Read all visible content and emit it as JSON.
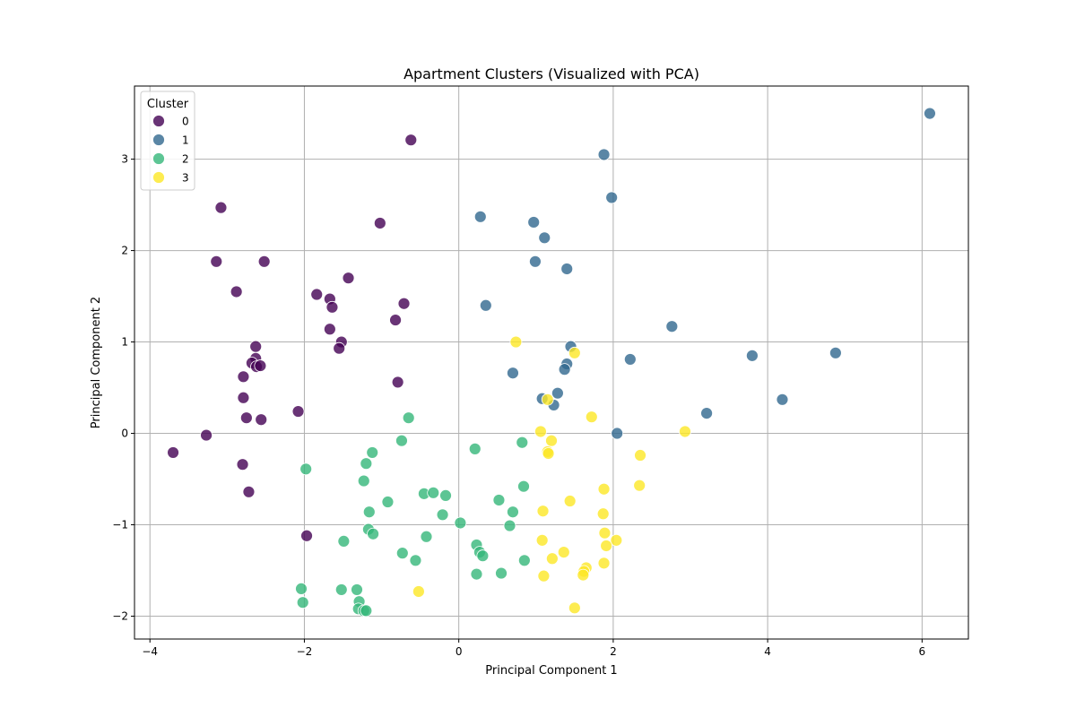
{
  "chart_data": {
    "type": "scatter",
    "title": "Apartment Clusters (Visualized with PCA)",
    "xlabel": "Principal Component 1",
    "ylabel": "Principal Component 2",
    "xlim": [
      -4.2,
      6.6
    ],
    "ylim": [
      -2.25,
      3.8
    ],
    "xticks": [
      -4,
      -2,
      0,
      2,
      4,
      6
    ],
    "yticks": [
      -2,
      -1,
      0,
      1,
      2,
      3
    ],
    "xtick_labels": [
      "−4",
      "−2",
      "0",
      "2",
      "4",
      "6"
    ],
    "ytick_labels": [
      "−2",
      "−1",
      "0",
      "1",
      "2",
      "3"
    ],
    "grid": true,
    "legend": {
      "title": "Cluster",
      "placement": "top-left"
    },
    "series": [
      {
        "name": "0",
        "color": "#440154",
        "points": [
          [
            -0.62,
            3.21
          ],
          [
            -3.08,
            2.47
          ],
          [
            -1.02,
            2.3
          ],
          [
            -3.14,
            1.88
          ],
          [
            -2.52,
            1.88
          ],
          [
            -1.43,
            1.7
          ],
          [
            -2.88,
            1.55
          ],
          [
            -1.84,
            1.52
          ],
          [
            -1.67,
            1.47
          ],
          [
            -1.64,
            1.38
          ],
          [
            -0.71,
            1.42
          ],
          [
            -0.82,
            1.24
          ],
          [
            -1.67,
            1.14
          ],
          [
            -1.52,
            1.0
          ],
          [
            -1.55,
            0.93
          ],
          [
            -2.63,
            0.95
          ],
          [
            -2.63,
            0.82
          ],
          [
            -2.68,
            0.77
          ],
          [
            -2.62,
            0.73
          ],
          [
            -2.57,
            0.74
          ],
          [
            -2.79,
            0.62
          ],
          [
            -0.79,
            0.56
          ],
          [
            -2.79,
            0.39
          ],
          [
            -2.08,
            0.24
          ],
          [
            -2.75,
            0.17
          ],
          [
            -2.56,
            0.15
          ],
          [
            -3.27,
            -0.02
          ],
          [
            -3.7,
            -0.21
          ],
          [
            -2.8,
            -0.34
          ],
          [
            -2.72,
            -0.64
          ],
          [
            -1.97,
            -1.12
          ]
        ]
      },
      {
        "name": "1",
        "color": "#31688e",
        "points": [
          [
            6.1,
            3.5
          ],
          [
            1.88,
            3.05
          ],
          [
            1.98,
            2.58
          ],
          [
            0.28,
            2.37
          ],
          [
            0.97,
            2.31
          ],
          [
            1.11,
            2.14
          ],
          [
            0.99,
            1.88
          ],
          [
            1.4,
            1.8
          ],
          [
            0.35,
            1.4
          ],
          [
            2.76,
            1.17
          ],
          [
            1.45,
            0.95
          ],
          [
            3.8,
            0.85
          ],
          [
            4.88,
            0.88
          ],
          [
            2.22,
            0.81
          ],
          [
            1.4,
            0.76
          ],
          [
            1.37,
            0.7
          ],
          [
            0.7,
            0.66
          ],
          [
            1.28,
            0.44
          ],
          [
            1.08,
            0.38
          ],
          [
            1.23,
            0.31
          ],
          [
            4.19,
            0.37
          ],
          [
            3.21,
            0.22
          ],
          [
            2.05,
            0.0
          ]
        ]
      },
      {
        "name": "2",
        "color": "#35b779",
        "points": [
          [
            -0.65,
            0.17
          ],
          [
            -0.74,
            -0.08
          ],
          [
            0.21,
            -0.17
          ],
          [
            0.82,
            -0.1
          ],
          [
            -1.12,
            -0.21
          ],
          [
            -1.2,
            -0.33
          ],
          [
            -1.98,
            -0.39
          ],
          [
            -1.23,
            -0.52
          ],
          [
            0.84,
            -0.58
          ],
          [
            -0.45,
            -0.66
          ],
          [
            -0.33,
            -0.65
          ],
          [
            -0.17,
            -0.68
          ],
          [
            0.52,
            -0.73
          ],
          [
            -0.92,
            -0.75
          ],
          [
            0.7,
            -0.86
          ],
          [
            -1.16,
            -0.86
          ],
          [
            -0.21,
            -0.89
          ],
          [
            0.02,
            -0.98
          ],
          [
            0.66,
            -1.01
          ],
          [
            -1.17,
            -1.05
          ],
          [
            -1.11,
            -1.1
          ],
          [
            -0.42,
            -1.13
          ],
          [
            -1.49,
            -1.18
          ],
          [
            0.23,
            -1.22
          ],
          [
            0.27,
            -1.3
          ],
          [
            -0.73,
            -1.31
          ],
          [
            0.31,
            -1.34
          ],
          [
            -0.56,
            -1.39
          ],
          [
            0.85,
            -1.39
          ],
          [
            0.23,
            -1.54
          ],
          [
            0.55,
            -1.53
          ],
          [
            -2.04,
            -1.7
          ],
          [
            -1.52,
            -1.71
          ],
          [
            -1.32,
            -1.71
          ],
          [
            -2.02,
            -1.85
          ],
          [
            -1.29,
            -1.84
          ],
          [
            -1.3,
            -1.92
          ],
          [
            -1.23,
            -1.94
          ],
          [
            -1.2,
            -1.94
          ]
        ]
      },
      {
        "name": "3",
        "color": "#fde725",
        "points": [
          [
            0.74,
            1.0
          ],
          [
            1.5,
            0.88
          ],
          [
            1.15,
            0.37
          ],
          [
            1.72,
            0.18
          ],
          [
            1.06,
            0.02
          ],
          [
            2.93,
            0.02
          ],
          [
            1.2,
            -0.08
          ],
          [
            1.15,
            -0.2
          ],
          [
            1.16,
            -0.22
          ],
          [
            2.35,
            -0.24
          ],
          [
            1.88,
            -0.61
          ],
          [
            2.34,
            -0.57
          ],
          [
            1.44,
            -0.74
          ],
          [
            1.09,
            -0.85
          ],
          [
            1.87,
            -0.88
          ],
          [
            1.89,
            -1.09
          ],
          [
            1.08,
            -1.17
          ],
          [
            2.04,
            -1.17
          ],
          [
            1.91,
            -1.23
          ],
          [
            1.36,
            -1.3
          ],
          [
            1.21,
            -1.37
          ],
          [
            1.88,
            -1.42
          ],
          [
            1.65,
            -1.47
          ],
          [
            1.62,
            -1.51
          ],
          [
            1.61,
            -1.55
          ],
          [
            1.1,
            -1.56
          ],
          [
            -0.52,
            -1.73
          ],
          [
            1.5,
            -1.91
          ]
        ]
      }
    ]
  }
}
